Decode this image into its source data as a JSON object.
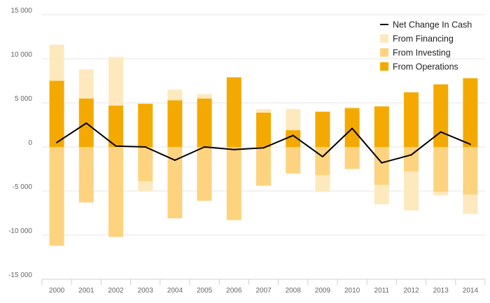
{
  "chart_data": {
    "type": "bar",
    "subtype": "stacked-bar-with-line",
    "categories": [
      "2000",
      "2001",
      "2002",
      "2003",
      "2004",
      "2005",
      "2006",
      "2007",
      "2008",
      "2009",
      "2010",
      "2011",
      "2012",
      "2013",
      "2014"
    ],
    "series": [
      {
        "name": "From Operations",
        "type": "bar",
        "color": "#f4a900",
        "values": [
          7500,
          5500,
          4700,
          4900,
          5300,
          5500,
          7900,
          3900,
          1900,
          4000,
          4400,
          4600,
          6200,
          7100,
          7800
        ]
      },
      {
        "name": "From Investing",
        "type": "bar",
        "color": "#fdd37f",
        "values": [
          -11200,
          -6300,
          -10200,
          -3900,
          -8100,
          -6100,
          -8300,
          -4400,
          -3000,
          -3200,
          -2500,
          -4300,
          -2800,
          -5100,
          -5400
        ]
      },
      {
        "name": "From Financing",
        "type": "bar",
        "color": "#fee9be",
        "values": [
          4100,
          3300,
          5500,
          -1100,
          1200,
          500,
          0,
          400,
          2400,
          -1900,
          100,
          -2200,
          -4400,
          -400,
          -2200
        ]
      },
      {
        "name": "Net Change In Cash",
        "type": "line",
        "color": "#000000",
        "values": [
          500,
          2700,
          100,
          0,
          -1500,
          0,
          -300,
          -100,
          1300,
          -1100,
          2100,
          -1800,
          -900,
          1700,
          300
        ]
      }
    ],
    "legend": [
      "Net Change In Cash",
      "From Financing",
      "From Investing",
      "From Operations"
    ],
    "legend_position": "top-right",
    "yticks": [
      "15 000",
      "10 000",
      "5 000",
      "0",
      "-5 000",
      "-10 000",
      "-15 000"
    ],
    "ylim": [
      -15000,
      15000
    ],
    "grid": true,
    "title": "",
    "xlabel": "",
    "ylabel": ""
  }
}
